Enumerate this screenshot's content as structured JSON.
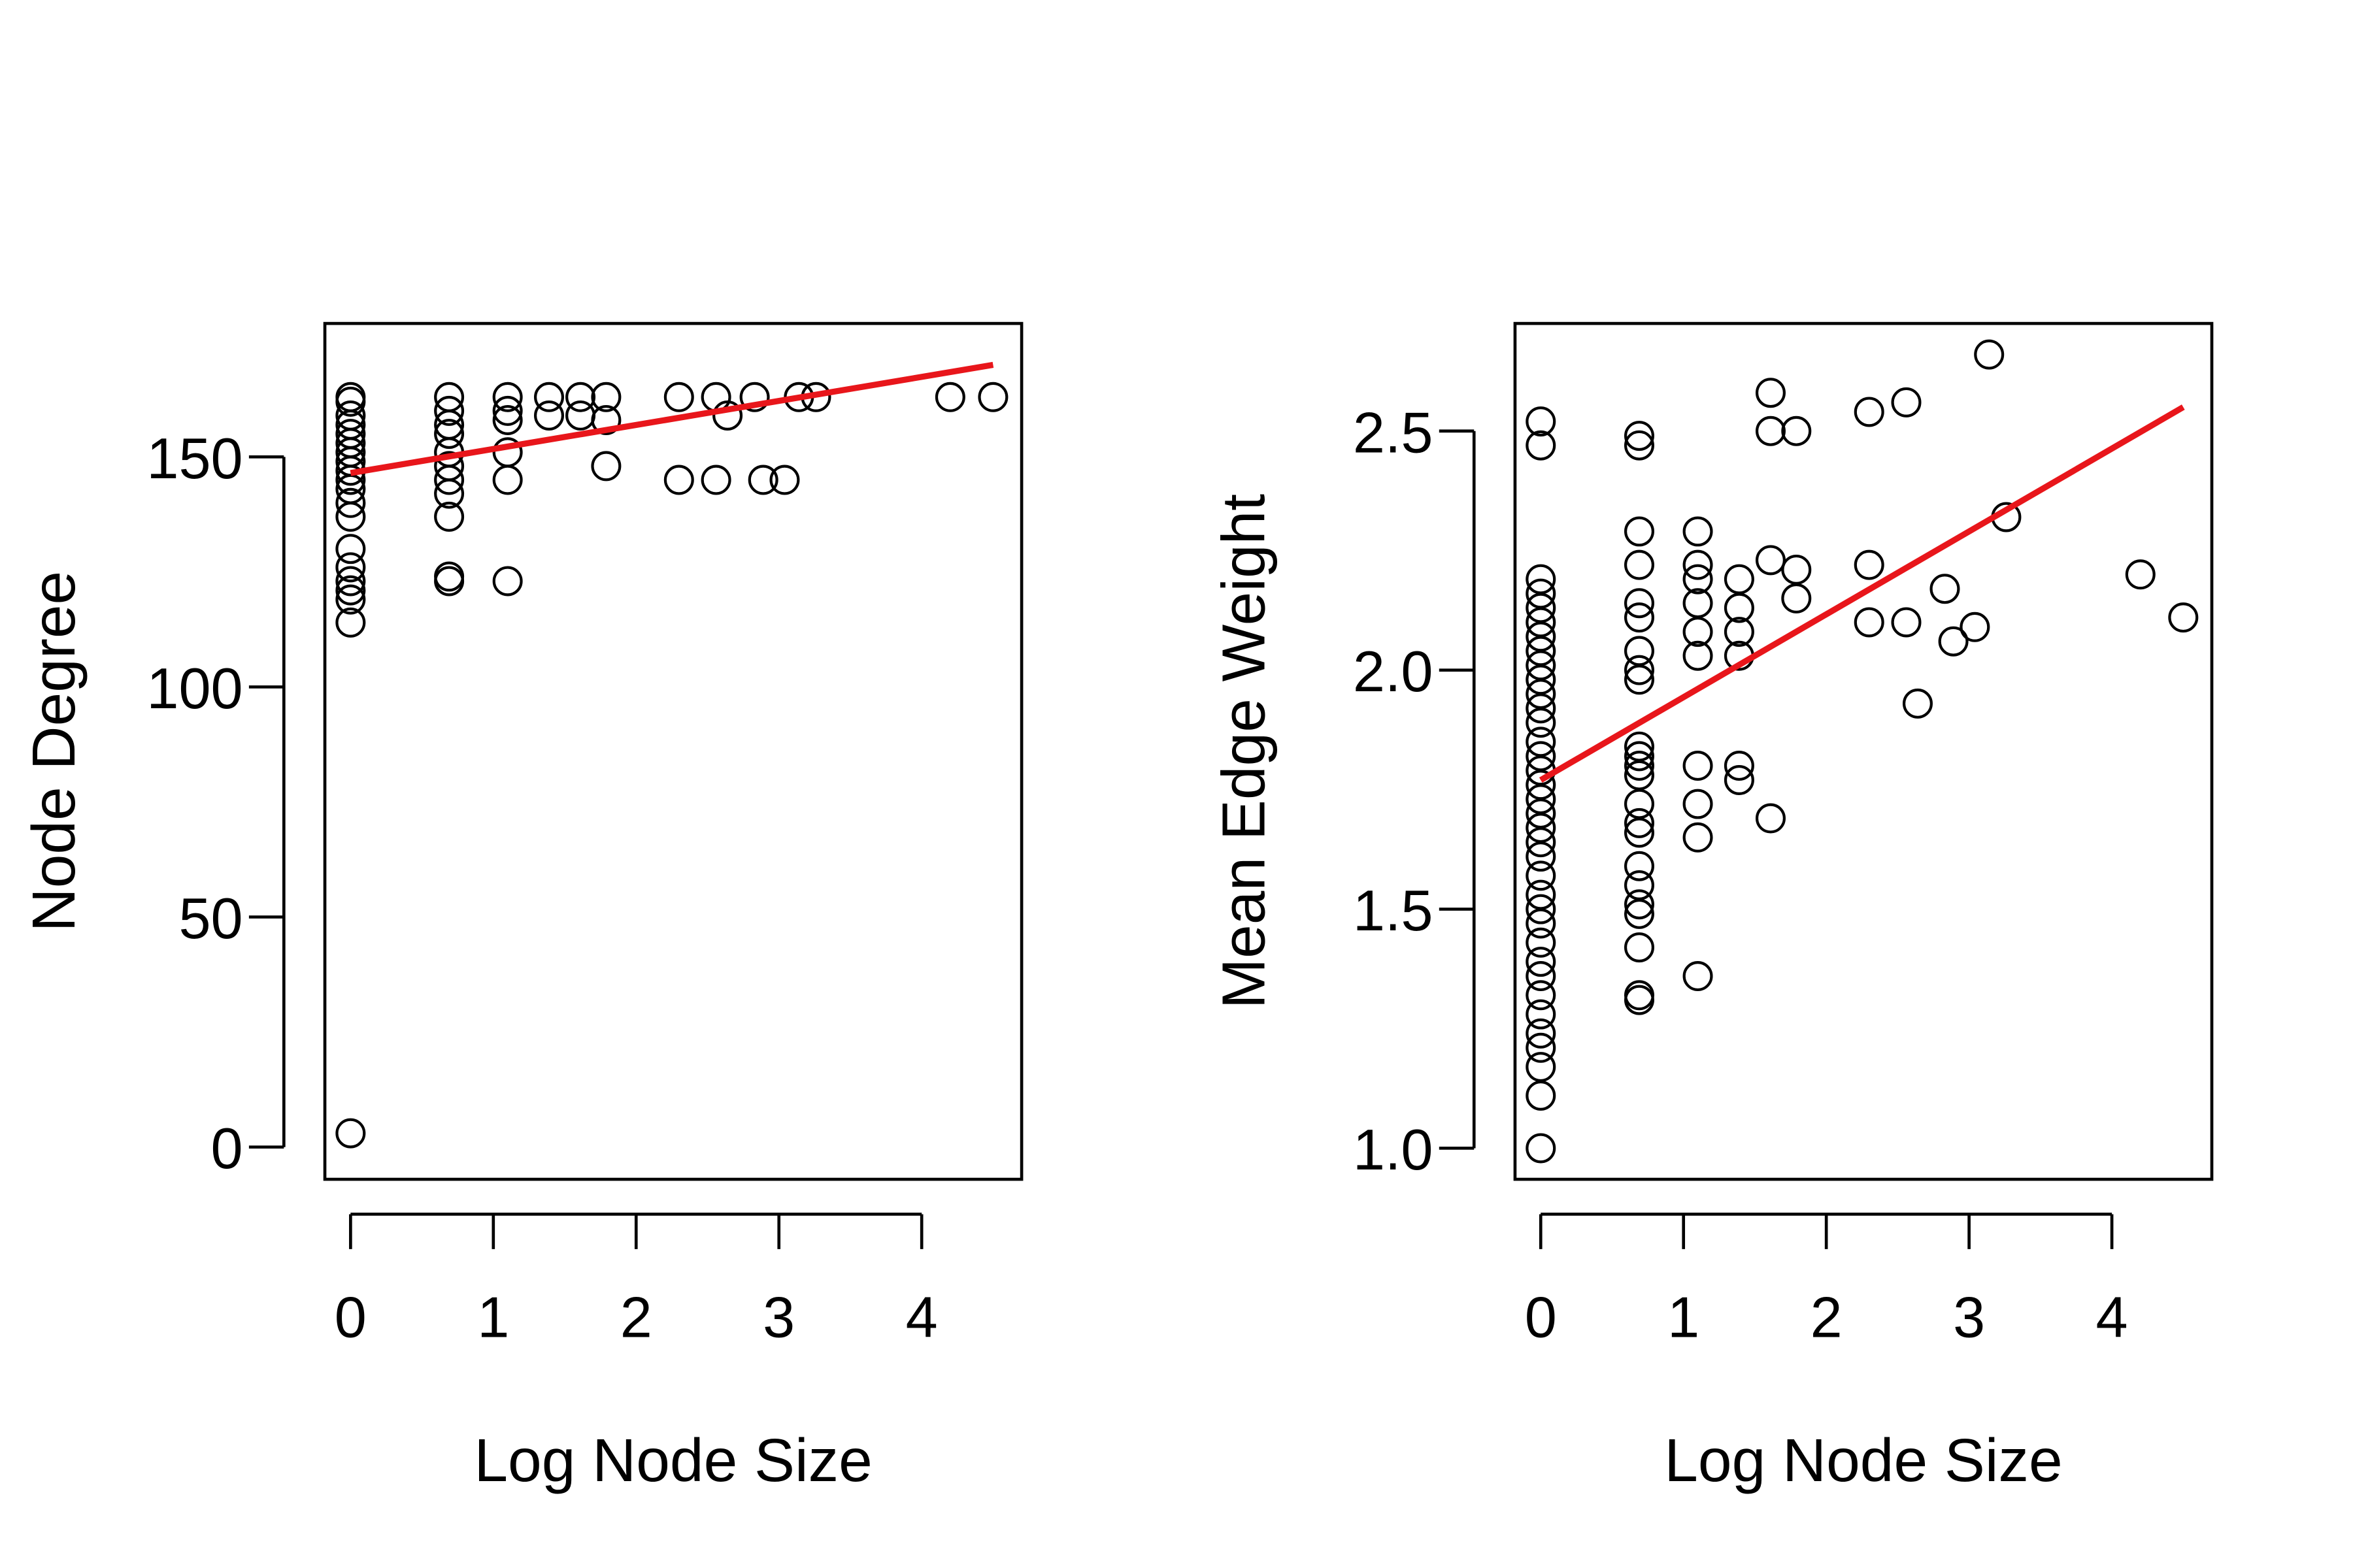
{
  "chart_data": [
    {
      "type": "scatter",
      "title": "",
      "xlabel": "Log Node Size",
      "ylabel": "Node Degree",
      "xlim": [
        -0.18,
        4.7
      ],
      "ylim": [
        -7,
        179
      ],
      "xticks": [
        0,
        1,
        2,
        3,
        4
      ],
      "xtick_labels": [
        "0",
        "1",
        "2",
        "3",
        "4"
      ],
      "yticks": [
        0,
        50,
        100,
        150
      ],
      "ytick_labels": [
        "0",
        "50",
        "100",
        "150"
      ],
      "grid": false,
      "legend": "none",
      "point_color": "#000000",
      "fit_color": "#e8161b",
      "fit_line": {
        "x": [
          0,
          4.5
        ],
        "y": [
          146.5,
          170
        ]
      },
      "points": [
        [
          0,
          163
        ],
        [
          0,
          162
        ],
        [
          0,
          159
        ],
        [
          0,
          157
        ],
        [
          0,
          155
        ],
        [
          0,
          153
        ],
        [
          0,
          151
        ],
        [
          0,
          149
        ],
        [
          0,
          147
        ],
        [
          0,
          145
        ],
        [
          0,
          143
        ],
        [
          0,
          140
        ],
        [
          0,
          137
        ],
        [
          0,
          130
        ],
        [
          0,
          126
        ],
        [
          0,
          123
        ],
        [
          0,
          121
        ],
        [
          0,
          119
        ],
        [
          0,
          114
        ],
        [
          0,
          3
        ],
        [
          0.69,
          163
        ],
        [
          0.69,
          160
        ],
        [
          0.69,
          157
        ],
        [
          0.69,
          155
        ],
        [
          0.69,
          151
        ],
        [
          0.69,
          148
        ],
        [
          0.69,
          145
        ],
        [
          0.69,
          142
        ],
        [
          0.69,
          137
        ],
        [
          0.69,
          124
        ],
        [
          0.69,
          123
        ],
        [
          1.1,
          163
        ],
        [
          1.1,
          160
        ],
        [
          1.1,
          158
        ],
        [
          1.1,
          151
        ],
        [
          1.1,
          145
        ],
        [
          1.1,
          123
        ],
        [
          1.39,
          163
        ],
        [
          1.39,
          159
        ],
        [
          1.61,
          163
        ],
        [
          1.61,
          159
        ],
        [
          1.79,
          163
        ],
        [
          1.79,
          158
        ],
        [
          1.79,
          148
        ],
        [
          2.3,
          163
        ],
        [
          2.3,
          145
        ],
        [
          2.56,
          163
        ],
        [
          2.56,
          145
        ],
        [
          2.64,
          159
        ],
        [
          2.83,
          163
        ],
        [
          2.89,
          145
        ],
        [
          3.04,
          145
        ],
        [
          3.14,
          163
        ],
        [
          3.26,
          163
        ],
        [
          4.2,
          163
        ],
        [
          4.5,
          163
        ]
      ]
    },
    {
      "type": "scatter",
      "title": "",
      "xlabel": "Log Node Size",
      "ylabel": "Mean Edge Weight",
      "xlim": [
        -0.18,
        4.7
      ],
      "ylim": [
        0.935,
        2.725
      ],
      "xticks": [
        0,
        1,
        2,
        3,
        4
      ],
      "xtick_labels": [
        "0",
        "1",
        "2",
        "3",
        "4"
      ],
      "yticks": [
        1.0,
        1.5,
        2.0,
        2.5
      ],
      "ytick_labels": [
        "1.0",
        "1.5",
        "2.0",
        "2.5"
      ],
      "grid": false,
      "legend": "none",
      "point_color": "#000000",
      "fit_color": "#e8161b",
      "fit_line": {
        "x": [
          0,
          4.5
        ],
        "y": [
          1.77,
          2.55
        ]
      },
      "points": [
        [
          0,
          2.52
        ],
        [
          0,
          2.47
        ],
        [
          0,
          2.19
        ],
        [
          0,
          2.16
        ],
        [
          0,
          2.13
        ],
        [
          0,
          2.1
        ],
        [
          0,
          2.07
        ],
        [
          0,
          2.04
        ],
        [
          0,
          2.01
        ],
        [
          0,
          1.98
        ],
        [
          0,
          1.95
        ],
        [
          0,
          1.92
        ],
        [
          0,
          1.89
        ],
        [
          0,
          1.85
        ],
        [
          0,
          1.82
        ],
        [
          0,
          1.79
        ],
        [
          0,
          1.76
        ],
        [
          0,
          1.73
        ],
        [
          0,
          1.7
        ],
        [
          0,
          1.67
        ],
        [
          0,
          1.64
        ],
        [
          0,
          1.61
        ],
        [
          0,
          1.57
        ],
        [
          0,
          1.53
        ],
        [
          0,
          1.5
        ],
        [
          0,
          1.47
        ],
        [
          0,
          1.43
        ],
        [
          0,
          1.39
        ],
        [
          0,
          1.36
        ],
        [
          0,
          1.32
        ],
        [
          0,
          1.28
        ],
        [
          0,
          1.24
        ],
        [
          0,
          1.21
        ],
        [
          0,
          1.17
        ],
        [
          0,
          1.11
        ],
        [
          0,
          1.0
        ],
        [
          0.69,
          2.49
        ],
        [
          0.69,
          2.47
        ],
        [
          0.69,
          2.29
        ],
        [
          0.69,
          2.22
        ],
        [
          0.69,
          2.14
        ],
        [
          0.69,
          2.11
        ],
        [
          0.69,
          2.04
        ],
        [
          0.69,
          2.0
        ],
        [
          0.69,
          1.98
        ],
        [
          0.69,
          1.84
        ],
        [
          0.69,
          1.82
        ],
        [
          0.69,
          1.8
        ],
        [
          0.69,
          1.78
        ],
        [
          0.69,
          1.72
        ],
        [
          0.69,
          1.68
        ],
        [
          0.69,
          1.66
        ],
        [
          0.69,
          1.59
        ],
        [
          0.69,
          1.55
        ],
        [
          0.69,
          1.51
        ],
        [
          0.69,
          1.49
        ],
        [
          0.69,
          1.42
        ],
        [
          0.69,
          1.32
        ],
        [
          0.69,
          1.31
        ],
        [
          1.1,
          2.29
        ],
        [
          1.1,
          2.22
        ],
        [
          1.1,
          2.19
        ],
        [
          1.1,
          2.14
        ],
        [
          1.1,
          2.08
        ],
        [
          1.1,
          2.03
        ],
        [
          1.1,
          1.8
        ],
        [
          1.1,
          1.72
        ],
        [
          1.1,
          1.65
        ],
        [
          1.1,
          1.36
        ],
        [
          1.39,
          2.19
        ],
        [
          1.39,
          2.13
        ],
        [
          1.39,
          2.08
        ],
        [
          1.39,
          2.03
        ],
        [
          1.39,
          1.8
        ],
        [
          1.39,
          1.77
        ],
        [
          1.61,
          2.58
        ],
        [
          1.61,
          2.5
        ],
        [
          1.61,
          2.23
        ],
        [
          1.61,
          1.69
        ],
        [
          1.79,
          2.5
        ],
        [
          1.79,
          2.21
        ],
        [
          1.79,
          2.15
        ],
        [
          2.3,
          2.54
        ],
        [
          2.3,
          2.22
        ],
        [
          2.3,
          2.1
        ],
        [
          2.56,
          2.56
        ],
        [
          2.56,
          2.1
        ],
        [
          2.64,
          1.93
        ],
        [
          2.83,
          2.17
        ],
        [
          2.89,
          2.06
        ],
        [
          3.04,
          2.09
        ],
        [
          3.14,
          2.66
        ],
        [
          3.26,
          2.32
        ],
        [
          4.2,
          2.2
        ],
        [
          4.5,
          2.11
        ]
      ]
    }
  ]
}
